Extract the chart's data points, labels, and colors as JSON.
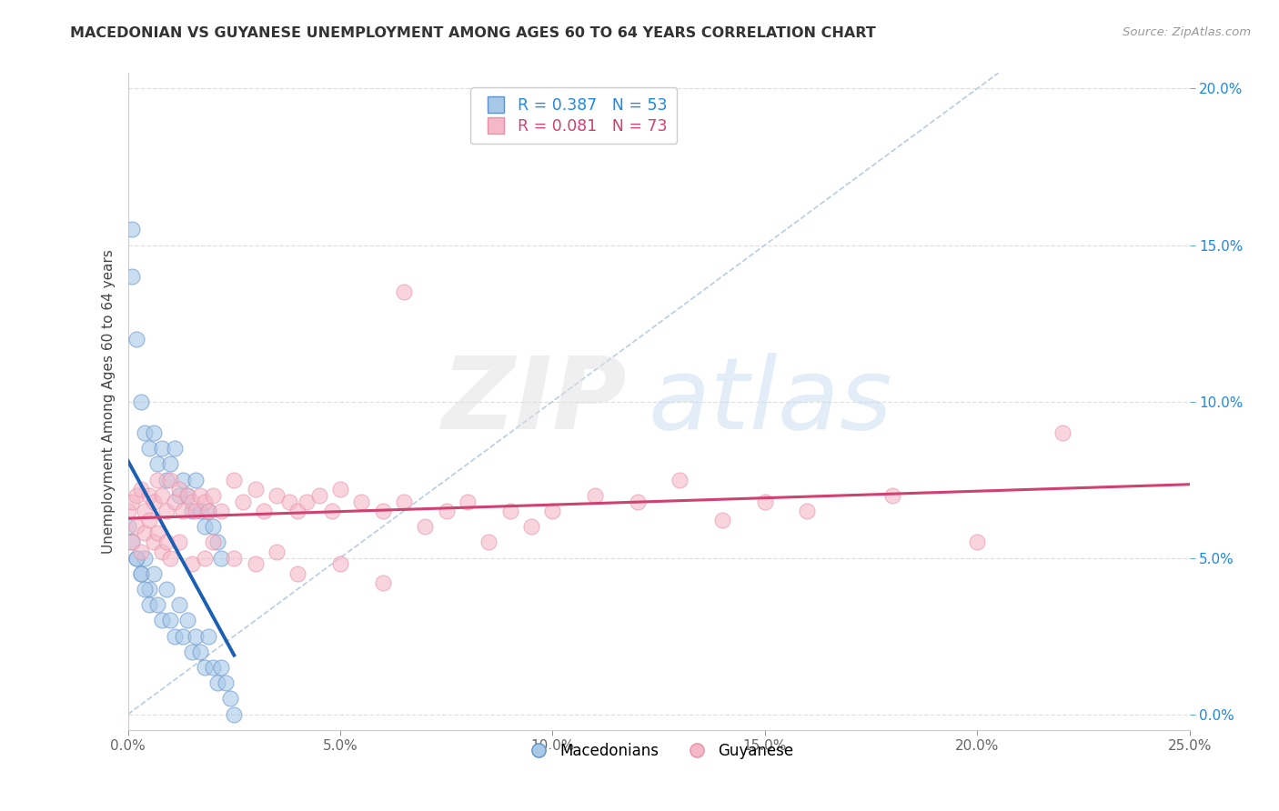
{
  "title": "MACEDONIAN VS GUYANESE UNEMPLOYMENT AMONG AGES 60 TO 64 YEARS CORRELATION CHART",
  "source": "Source: ZipAtlas.com",
  "ylabel": "Unemployment Among Ages 60 to 64 years",
  "xlim": [
    0.0,
    0.25
  ],
  "ylim": [
    -0.005,
    0.205
  ],
  "x_ticks": [
    0.0,
    0.05,
    0.1,
    0.15,
    0.2,
    0.25
  ],
  "y_ticks": [
    0.0,
    0.05,
    0.1,
    0.15,
    0.2
  ],
  "macedonian_R": 0.387,
  "macedonian_N": 53,
  "guyanese_R": 0.081,
  "guyanese_N": 73,
  "blue_scatter_color": "#a8c8e8",
  "pink_scatter_color": "#f4b8c8",
  "blue_edge_color": "#6090c8",
  "pink_edge_color": "#e890a8",
  "blue_line_color": "#1a5fb4",
  "pink_line_color": "#d04070",
  "diag_color": "#b0c8e0",
  "grid_color": "#e0e0e0",
  "background_color": "#ffffff",
  "title_color": "#333333",
  "source_color": "#999999",
  "ytick_color": "#1E88E5",
  "xtick_color": "#666666",
  "legend_r_color_blue": "#1E88E5",
  "legend_r_color_pink": "#d04070",
  "mac_x": [
    0.002,
    0.003,
    0.004,
    0.005,
    0.006,
    0.007,
    0.008,
    0.009,
    0.01,
    0.011,
    0.012,
    0.013,
    0.014,
    0.015,
    0.016,
    0.017,
    0.018,
    0.019,
    0.02,
    0.021,
    0.022,
    0.001,
    0.001,
    0.002,
    0.003,
    0.004,
    0.005,
    0.0,
    0.001,
    0.002,
    0.003,
    0.004,
    0.005,
    0.006,
    0.007,
    0.008,
    0.009,
    0.01,
    0.011,
    0.012,
    0.013,
    0.014,
    0.015,
    0.016,
    0.017,
    0.018,
    0.019,
    0.02,
    0.021,
    0.022,
    0.023,
    0.024,
    0.025
  ],
  "mac_y": [
    0.12,
    0.1,
    0.09,
    0.085,
    0.09,
    0.08,
    0.085,
    0.075,
    0.08,
    0.085,
    0.07,
    0.075,
    0.07,
    0.065,
    0.075,
    0.065,
    0.06,
    0.065,
    0.06,
    0.055,
    0.05,
    0.14,
    0.155,
    0.05,
    0.045,
    0.05,
    0.04,
    0.06,
    0.055,
    0.05,
    0.045,
    0.04,
    0.035,
    0.045,
    0.035,
    0.03,
    0.04,
    0.03,
    0.025,
    0.035,
    0.025,
    0.03,
    0.02,
    0.025,
    0.02,
    0.015,
    0.025,
    0.015,
    0.01,
    0.015,
    0.01,
    0.005,
    0.0
  ],
  "guy_x": [
    0.0,
    0.001,
    0.002,
    0.003,
    0.004,
    0.005,
    0.006,
    0.007,
    0.008,
    0.009,
    0.01,
    0.011,
    0.012,
    0.013,
    0.014,
    0.015,
    0.016,
    0.017,
    0.018,
    0.019,
    0.02,
    0.022,
    0.025,
    0.027,
    0.03,
    0.032,
    0.035,
    0.038,
    0.04,
    0.042,
    0.045,
    0.048,
    0.05,
    0.055,
    0.06,
    0.065,
    0.07,
    0.075,
    0.08,
    0.085,
    0.09,
    0.095,
    0.1,
    0.11,
    0.12,
    0.13,
    0.14,
    0.15,
    0.16,
    0.18,
    0.2,
    0.22,
    0.065,
    0.001,
    0.002,
    0.003,
    0.004,
    0.005,
    0.006,
    0.007,
    0.008,
    0.009,
    0.01,
    0.012,
    0.015,
    0.018,
    0.02,
    0.025,
    0.03,
    0.035,
    0.04,
    0.05,
    0.06
  ],
  "guy_y": [
    0.065,
    0.068,
    0.07,
    0.072,
    0.065,
    0.07,
    0.068,
    0.075,
    0.07,
    0.065,
    0.075,
    0.068,
    0.072,
    0.065,
    0.07,
    0.068,
    0.065,
    0.07,
    0.068,
    0.065,
    0.07,
    0.065,
    0.075,
    0.068,
    0.072,
    0.065,
    0.07,
    0.068,
    0.065,
    0.068,
    0.07,
    0.065,
    0.072,
    0.068,
    0.065,
    0.068,
    0.06,
    0.065,
    0.068,
    0.055,
    0.065,
    0.06,
    0.065,
    0.07,
    0.068,
    0.075,
    0.062,
    0.068,
    0.065,
    0.07,
    0.055,
    0.09,
    0.135,
    0.055,
    0.06,
    0.052,
    0.058,
    0.062,
    0.055,
    0.058,
    0.052,
    0.055,
    0.05,
    0.055,
    0.048,
    0.05,
    0.055,
    0.05,
    0.048,
    0.052,
    0.045,
    0.048,
    0.042
  ]
}
